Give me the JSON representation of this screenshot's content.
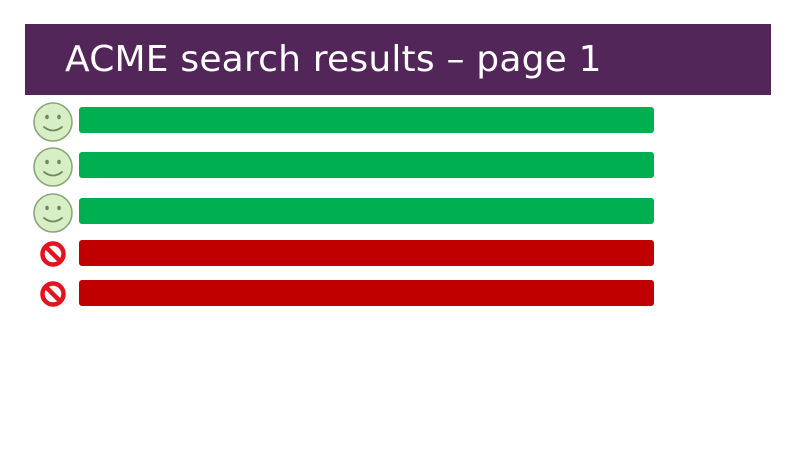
{
  "header": {
    "title": "ACME search results – page 1"
  },
  "colors": {
    "header_bg": "#532659",
    "relevant": "#00b050",
    "irrelevant": "#c00000",
    "smiley_fill": "#d7eec6",
    "smiley_stroke": "#8aa777",
    "no_sign": "#e0141e"
  },
  "results": [
    {
      "status": "relevant",
      "icon": "smiley-face-icon"
    },
    {
      "status": "relevant",
      "icon": "smiley-face-icon"
    },
    {
      "status": "relevant",
      "icon": "smiley-face-icon"
    },
    {
      "status": "irrelevant",
      "icon": "no-sign-icon"
    },
    {
      "status": "irrelevant",
      "icon": "no-sign-icon"
    }
  ]
}
